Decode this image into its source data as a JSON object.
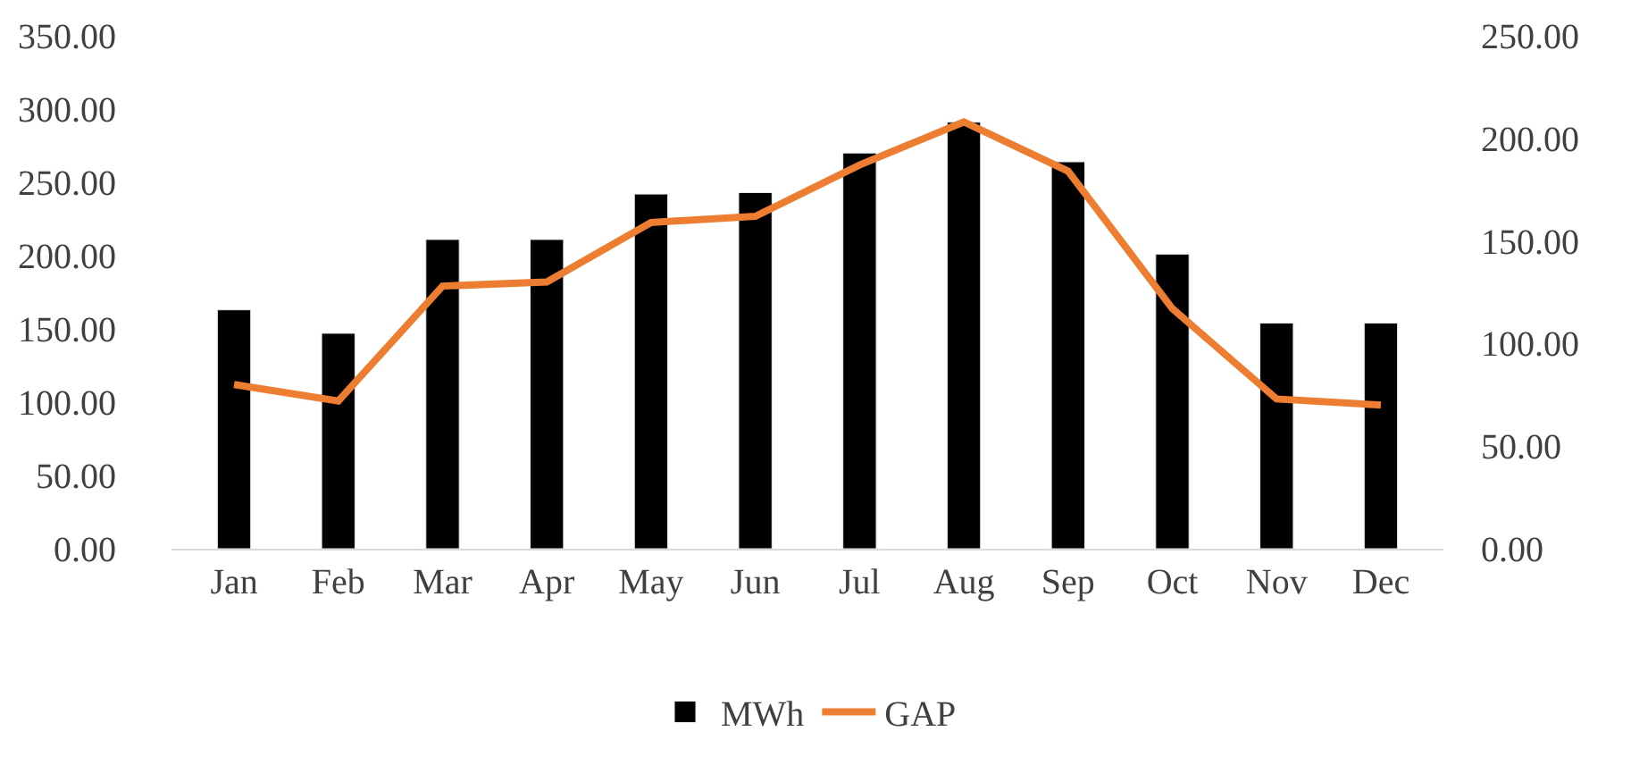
{
  "chart_data": {
    "type": "bar",
    "categories": [
      "Jan",
      "Feb",
      "Mar",
      "Apr",
      "May",
      "Jun",
      "Jul",
      "Aug",
      "Sep",
      "Oct",
      "Nov",
      "Dec"
    ],
    "series": [
      {
        "name": "MWh",
        "color": "#000000",
        "values": [
          163,
          147,
          211,
          211,
          242,
          243,
          270,
          291,
          264,
          201,
          154,
          154
        ]
      },
      {
        "name": "GAP",
        "type": "line",
        "axis": "y2",
        "color": "#ed7d31",
        "values": [
          80,
          72,
          128,
          130,
          159,
          162,
          187,
          208,
          184,
          117,
          73,
          70
        ]
      }
    ],
    "ylim": [
      0,
      350
    ],
    "yticks": [
      {
        "value": 0,
        "label": "0.00"
      },
      {
        "value": 50,
        "label": "50.00"
      },
      {
        "value": 100,
        "label": "100.00"
      },
      {
        "value": 150,
        "label": "150.00"
      },
      {
        "value": 200,
        "label": "200.00"
      },
      {
        "value": 250,
        "label": "250.00"
      },
      {
        "value": 300,
        "label": "300.00"
      },
      {
        "value": 350,
        "label": "350.00"
      }
    ],
    "y2lim": [
      0,
      250
    ],
    "y2ticks": [
      {
        "value": 0,
        "label": "0.00"
      },
      {
        "value": 50,
        "label": "50.00"
      },
      {
        "value": 100,
        "label": "100.00"
      },
      {
        "value": 150,
        "label": "150.00"
      },
      {
        "value": 200,
        "label": "200.00"
      },
      {
        "value": 250,
        "label": "250.00"
      }
    ],
    "legend": "bottom",
    "marker": "none",
    "line_style": "solid"
  }
}
